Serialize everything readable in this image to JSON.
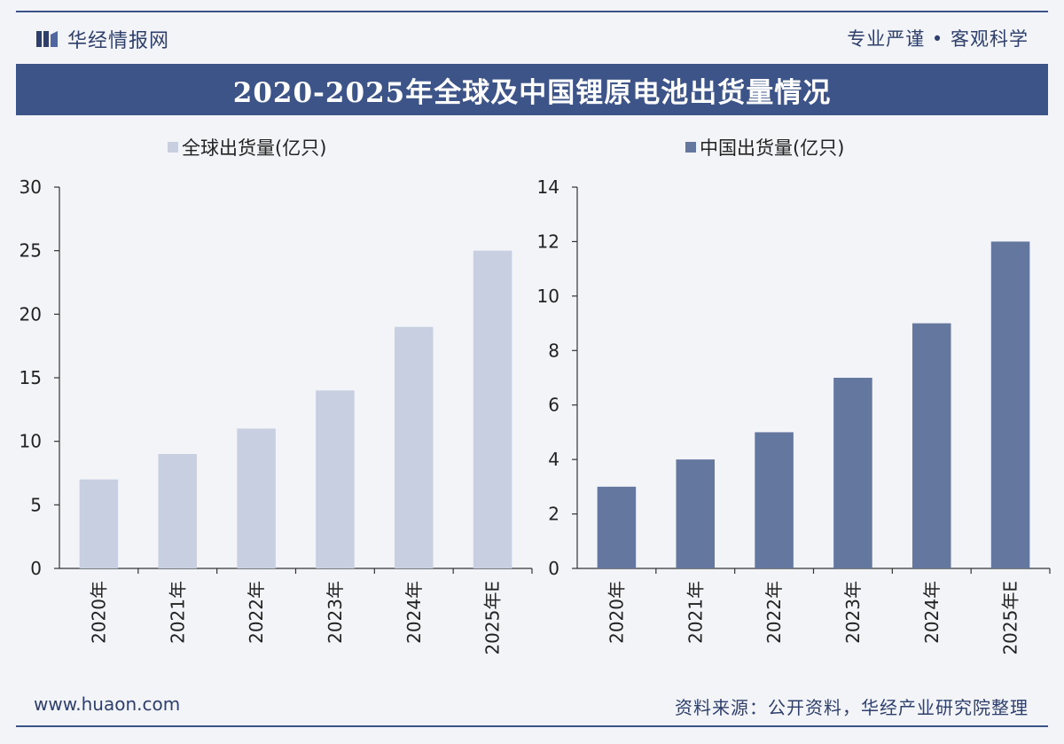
{
  "header": {
    "brand": "华经情报网",
    "tagline": "专业严谨 • 客观科学"
  },
  "title": "2020-2025年全球及中国锂原电池出货量情况",
  "footer": {
    "website": "www.huaon.com",
    "source": "资料来源：公开资料，华经产业研究院整理"
  },
  "colors": {
    "accent": "#3d5488",
    "global_bar": "#c8cfe0",
    "china_bar": "#63779f"
  },
  "chart_data": [
    {
      "type": "bar",
      "title": "",
      "legend": "全球出货量(亿只)",
      "legend_position": "top-center",
      "categories": [
        "2020年",
        "2021年",
        "2022年",
        "2023年",
        "2024年",
        "2025年E"
      ],
      "values": [
        7,
        9,
        11,
        14,
        19,
        25
      ],
      "ylim": [
        0,
        30
      ],
      "yticks": [
        0,
        5,
        10,
        15,
        20,
        25,
        30
      ],
      "xlabel": "",
      "ylabel": "",
      "grid": false
    },
    {
      "type": "bar",
      "title": "",
      "legend": "中国出货量(亿只)",
      "legend_position": "top-center",
      "categories": [
        "2020年",
        "2021年",
        "2022年",
        "2023年",
        "2024年",
        "2025年E"
      ],
      "values": [
        3,
        4,
        5,
        7,
        9,
        12
      ],
      "ylim": [
        0,
        14
      ],
      "yticks": [
        0,
        2,
        4,
        6,
        8,
        10,
        12,
        14
      ],
      "xlabel": "",
      "ylabel": "",
      "grid": false
    }
  ]
}
